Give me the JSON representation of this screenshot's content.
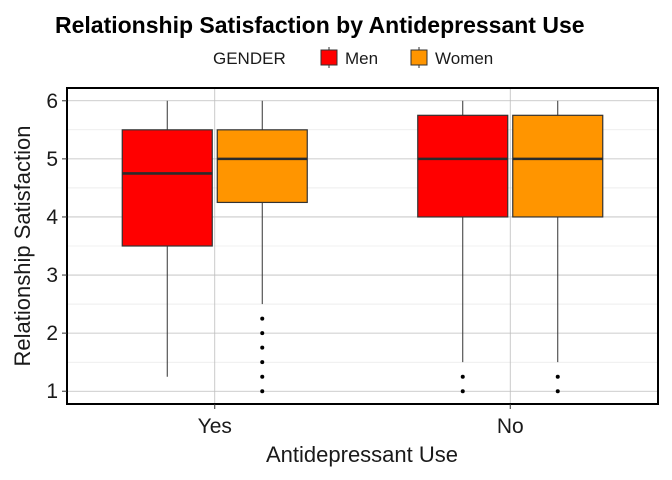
{
  "chart_data": {
    "type": "boxplot",
    "title": "Relationship Satisfaction by Antidepressant Use",
    "xlabel": "Antidepressant Use",
    "ylabel": "Relationship Satisfaction",
    "ylim": [
      0.78,
      6.22
    ],
    "yticks": [
      1,
      2,
      3,
      4,
      5,
      6
    ],
    "grid": true,
    "legend": {
      "title": "GENDER",
      "position": "top",
      "entries": [
        {
          "name": "Men",
          "color": "#ff0000"
        },
        {
          "name": "Women",
          "color": "#ff9500"
        }
      ]
    },
    "categories": [
      "Yes",
      "No"
    ],
    "series": [
      {
        "name": "Men",
        "color": "#ff0000",
        "boxes": [
          {
            "category": "Yes",
            "min": 1.25,
            "q1": 3.5,
            "median": 4.75,
            "q3": 5.5,
            "max": 6.0,
            "outliers": []
          },
          {
            "category": "No",
            "min": 1.5,
            "q1": 4.0,
            "median": 5.0,
            "q3": 5.75,
            "max": 6.0,
            "outliers": [
              1.0,
              1.25
            ]
          }
        ]
      },
      {
        "name": "Women",
        "color": "#ff9500",
        "boxes": [
          {
            "category": "Yes",
            "min": 2.5,
            "q1": 4.25,
            "median": 5.0,
            "q3": 5.5,
            "max": 6.0,
            "outliers": [
              1.0,
              1.25,
              1.5,
              1.75,
              2.0,
              2.25
            ]
          },
          {
            "category": "No",
            "min": 1.5,
            "q1": 4.0,
            "median": 5.0,
            "q3": 5.75,
            "max": 6.0,
            "outliers": [
              1.0,
              1.25
            ]
          }
        ]
      }
    ]
  }
}
